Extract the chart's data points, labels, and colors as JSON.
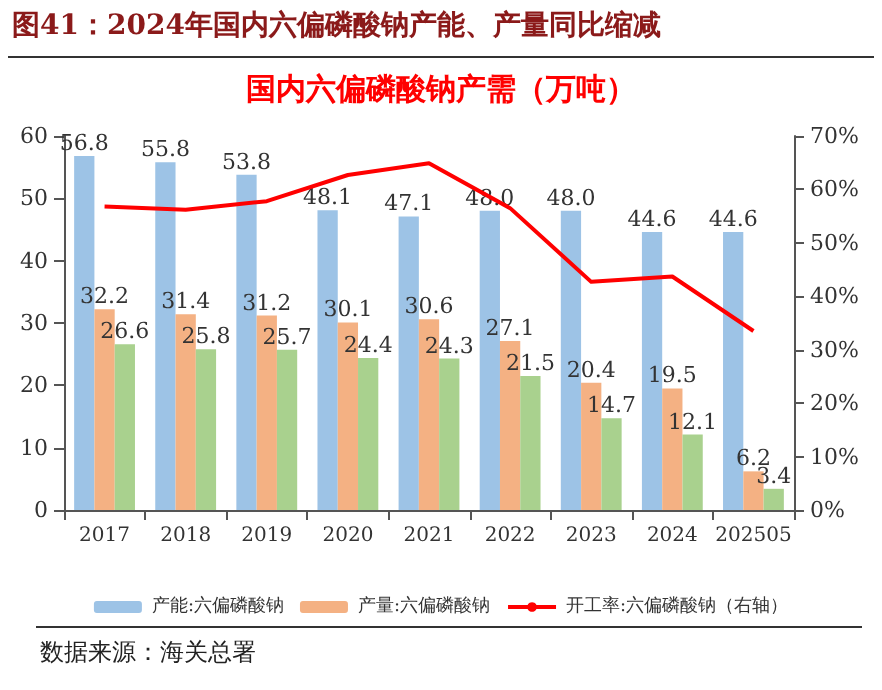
{
  "chart_data": {
    "type": "bar",
    "title": "图41：2024年国内六偏磷酸钠产能、产量同比缩减",
    "subtitle": "国内六偏磷酸钠产需（万吨）",
    "categories": [
      "2017",
      "2018",
      "2019",
      "2020",
      "2021",
      "2022",
      "2023",
      "2024",
      "202505"
    ],
    "series": [
      {
        "name": "产能:六偏磷酸钠",
        "color": "#9dc3e6",
        "values": [
          56.8,
          55.8,
          53.8,
          48.1,
          47.1,
          48.0,
          48.0,
          44.6,
          44.6
        ],
        "value_labels": [
          "56.8",
          "55.8",
          "53.8",
          "48.1",
          "47.1",
          "48.0",
          "48.0",
          "44.6",
          "44.6"
        ]
      },
      {
        "name": "产量:六偏磷酸钠",
        "color": "#f4b183",
        "values": [
          32.2,
          31.4,
          31.2,
          30.1,
          30.6,
          27.1,
          20.4,
          19.5,
          6.2
        ],
        "value_labels": [
          "32.2",
          "31.4",
          "31.2",
          "30.1",
          "30.6",
          "27.1",
          "20.4",
          "19.5",
          "6.2"
        ]
      },
      {
        "color": "#a9d18e",
        "values": [
          26.6,
          25.8,
          25.7,
          24.4,
          24.3,
          21.5,
          14.7,
          12.1,
          3.4
        ],
        "value_labels": [
          "26.6",
          "25.8",
          "25.7",
          "24.4",
          "24.3",
          "21.5",
          "14.7",
          "12.1",
          "3.4"
        ]
      },
      {
        "name": "开工率:六偏磷酸钠（右轴）",
        "type": "line",
        "axis": "y2",
        "color": "#ff0000",
        "values": [
          56.8,
          56.2,
          57.8,
          62.7,
          64.9,
          56.5,
          42.7,
          43.7,
          33.5
        ]
      }
    ],
    "ylim": [
      0,
      60
    ],
    "yticks": [
      0,
      10,
      20,
      30,
      40,
      50,
      60
    ],
    "y2lim": [
      0,
      70
    ],
    "y2ticks": [
      {
        "value": 0,
        "label": "0%"
      },
      {
        "value": 10,
        "label": "10%"
      },
      {
        "value": 20,
        "label": "20%"
      },
      {
        "value": 30,
        "label": "30%"
      },
      {
        "value": 40,
        "label": "40%"
      },
      {
        "value": 50,
        "label": "50%"
      },
      {
        "value": 60,
        "label": "60%"
      },
      {
        "value": 70,
        "label": "70%"
      }
    ],
    "grid": false,
    "legend": "bottom",
    "marker": "none",
    "line_style": "solid",
    "annotations": [
      "数据来源：海关总署"
    ]
  }
}
